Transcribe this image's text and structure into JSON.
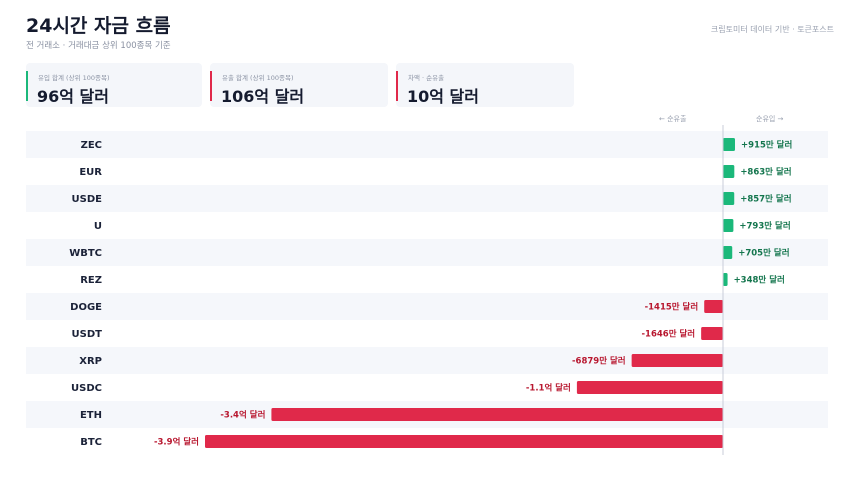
{
  "header": {
    "title": "24시간 자금 흐름",
    "subtitle": "전 거래소 · 거래대금 상위 100종목 기준",
    "source": "크립토미터 데이터 기반 · 토큰포스트"
  },
  "cards": [
    {
      "label": "유입 합계 (상위 100종목)",
      "value": "96억 달러",
      "color": "#1bb87a"
    },
    {
      "label": "유출 합계 (상위 100종목)",
      "value": "106억 달러",
      "color": "#e0294a"
    },
    {
      "label": "차액 · 순유출",
      "value": "10억 달러",
      "color": "#e0294a"
    }
  ],
  "axis_hints": {
    "left": "← 순유출",
    "right": "순유입 →"
  },
  "colors": {
    "inflow": "#1bb87a",
    "outflow": "#e0294a",
    "inflow_text": "#13754d",
    "outflow_text": "#b8172f"
  },
  "chart_data": {
    "type": "bar",
    "orientation": "horizontal",
    "unit": "달러",
    "categories": [
      "ZEC",
      "EUR",
      "USDE",
      "U",
      "WBTC",
      "REZ",
      "DOGE",
      "USDT",
      "XRP",
      "USDC",
      "ETH",
      "BTC"
    ],
    "values": [
      9150000,
      8630000,
      8570000,
      7930000,
      7050000,
      3480000,
      -14150000,
      -16460000,
      -68790000,
      -110000000,
      -340000000,
      -390000000
    ],
    "data_labels": [
      "+915만 달러",
      "+863만 달러",
      "+857만 달러",
      "+793만 달러",
      "+705만 달러",
      "+348만 달러",
      "-1415만 달러",
      "-1646만 달러",
      "-6879만 달러",
      "-1.1억 달러",
      "-3.4억 달러",
      "-3.9억 달러"
    ],
    "xlim": [
      -390000000,
      10000000
    ],
    "grid": false,
    "legend": "none"
  }
}
